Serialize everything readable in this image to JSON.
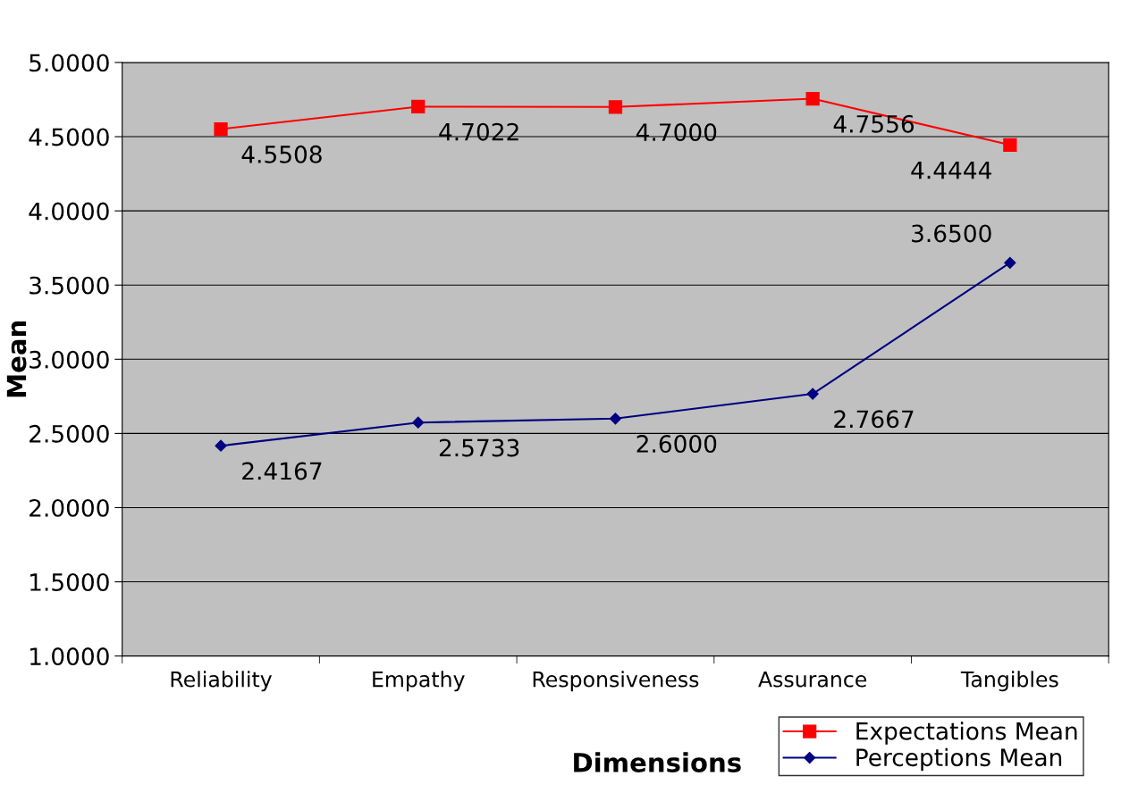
{
  "chart_data": {
    "type": "line",
    "xlabel": "Dimensions",
    "ylabel": "Mean",
    "categories": [
      "Reliability",
      "Empathy",
      "Responsiveness",
      "Assurance",
      "Tangibles"
    ],
    "series": [
      {
        "name": "Expectations Mean",
        "color": "#ff0000",
        "marker": "square",
        "values": [
          4.5508,
          4.7022,
          4.7,
          4.7556,
          4.4444
        ],
        "value_labels": [
          "4.5508",
          "4.7022",
          "4.7000",
          "4.7556",
          "4.4444"
        ]
      },
      {
        "name": "Perceptions Mean",
        "color": "#000080",
        "marker": "diamond",
        "values": [
          2.4167,
          2.5733,
          2.6,
          2.7667,
          3.65
        ],
        "value_labels": [
          "2.4167",
          "2.5733",
          "2.6000",
          "2.7667",
          "3.6500"
        ]
      }
    ],
    "ylim": [
      1,
      5
    ],
    "yticks": [
      {
        "value": 1,
        "label": "1.0000"
      },
      {
        "value": 1.5,
        "label": "1.5000"
      },
      {
        "value": 2,
        "label": "2.0000"
      },
      {
        "value": 2.5,
        "label": "2.5000"
      },
      {
        "value": 3,
        "label": "3.0000"
      },
      {
        "value": 3.5,
        "label": "3.5000"
      },
      {
        "value": 4,
        "label": "4.0000"
      },
      {
        "value": 4.5,
        "label": "4.5000"
      },
      {
        "value": 5,
        "label": "5.0000"
      }
    ],
    "grid": "y",
    "legend": "bottom right",
    "line_style": "solid"
  }
}
